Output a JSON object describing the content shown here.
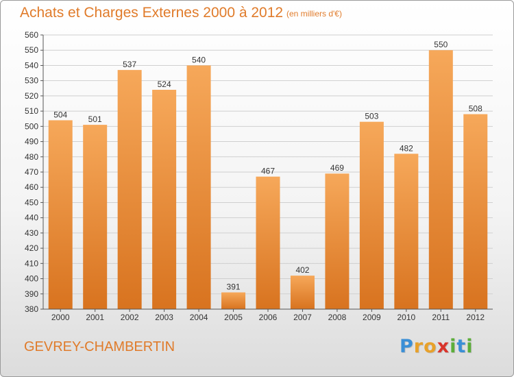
{
  "header": {
    "title": "Achats et Charges Externes 2000 à 2012",
    "subtitle": "(en milliers d'€)"
  },
  "footer": {
    "commune": "GEVREY-CHAMBERTIN",
    "brand": "Proxiti",
    "brand_letters": [
      {
        "ch": "P",
        "color": "#3a8fd6"
      },
      {
        "ch": "r",
        "color": "#e8a12a"
      },
      {
        "ch": "o",
        "color": "#e8a12a"
      },
      {
        "ch": "x",
        "color": "#d9342b"
      },
      {
        "ch": "i",
        "color": "#5cae3a"
      },
      {
        "ch": "t",
        "color": "#3a8fd6"
      },
      {
        "ch": "i",
        "color": "#5cae3a"
      }
    ]
  },
  "colors": {
    "bar_light": "#f6a85a",
    "bar_dark": "#d8731f",
    "text_accent": "#e07b2a",
    "axis": "#555555",
    "grid": "#cfcfcf"
  },
  "chart_data": {
    "type": "bar",
    "title": "Achats et Charges Externes 2000 à 2012",
    "subtitle": "(en milliers d'€)",
    "xlabel": "",
    "ylabel": "",
    "categories": [
      "2000",
      "2001",
      "2002",
      "2003",
      "2004",
      "2005",
      "2006",
      "2007",
      "2008",
      "2009",
      "2010",
      "2011",
      "2012"
    ],
    "values": [
      504,
      501,
      537,
      524,
      540,
      391,
      467,
      402,
      469,
      503,
      482,
      550,
      508
    ],
    "ylim": [
      380,
      560
    ],
    "ytick_step": 10,
    "grid": true,
    "data_labels": true,
    "legend": "none"
  }
}
